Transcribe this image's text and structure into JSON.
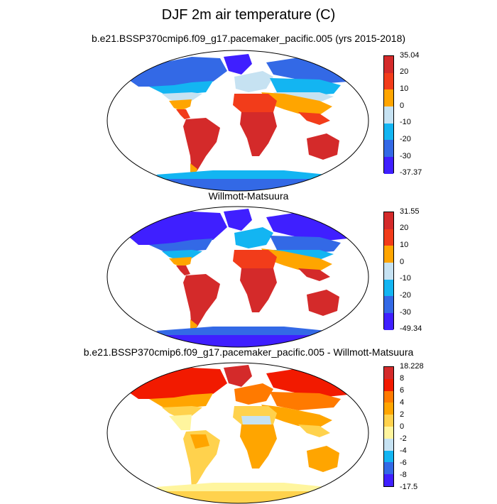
{
  "title": "DJF 2m air temperature (C)",
  "panels": [
    {
      "id": "model",
      "subtitle": "b.e21.BSSP370cmip6.f09_g17.pacemaker_pacific.005 (yrs 2015-2018)",
      "colorbar": {
        "labels": [
          "35.04",
          "20",
          "10",
          "0",
          "-10",
          "-20",
          "-30",
          "-37.37"
        ],
        "colors": [
          "#d42a2a",
          "#f23c1a",
          "#ffa500",
          "#c6e2f2",
          "#13b5f2",
          "#3369e6",
          "#3f1fff"
        ]
      }
    },
    {
      "id": "obs",
      "subtitle": "Willmott-Matsuura",
      "colorbar": {
        "labels": [
          "31.55",
          "20",
          "10",
          "0",
          "-10",
          "-20",
          "-30",
          "-49.34"
        ],
        "colors": [
          "#d42a2a",
          "#f23c1a",
          "#ffa500",
          "#c6e2f2",
          "#13b5f2",
          "#3369e6",
          "#3f1fff"
        ]
      }
    },
    {
      "id": "diff",
      "subtitle": "b.e21.BSSP370cmip6.f09_g17.pacemaker_pacific.005 - Willmott-Matsuura",
      "colorbar": {
        "labels": [
          "18.228",
          "8",
          "6",
          "4",
          "2",
          "0",
          "-2",
          "-4",
          "-6",
          "-8",
          "-17.5"
        ],
        "colors": [
          "#d42a2a",
          "#f21a00",
          "#ff7a00",
          "#ffa500",
          "#ffd24d",
          "#fff59e",
          "#c6e2f2",
          "#13b5f2",
          "#3369e6",
          "#3f1fff"
        ]
      }
    }
  ]
}
